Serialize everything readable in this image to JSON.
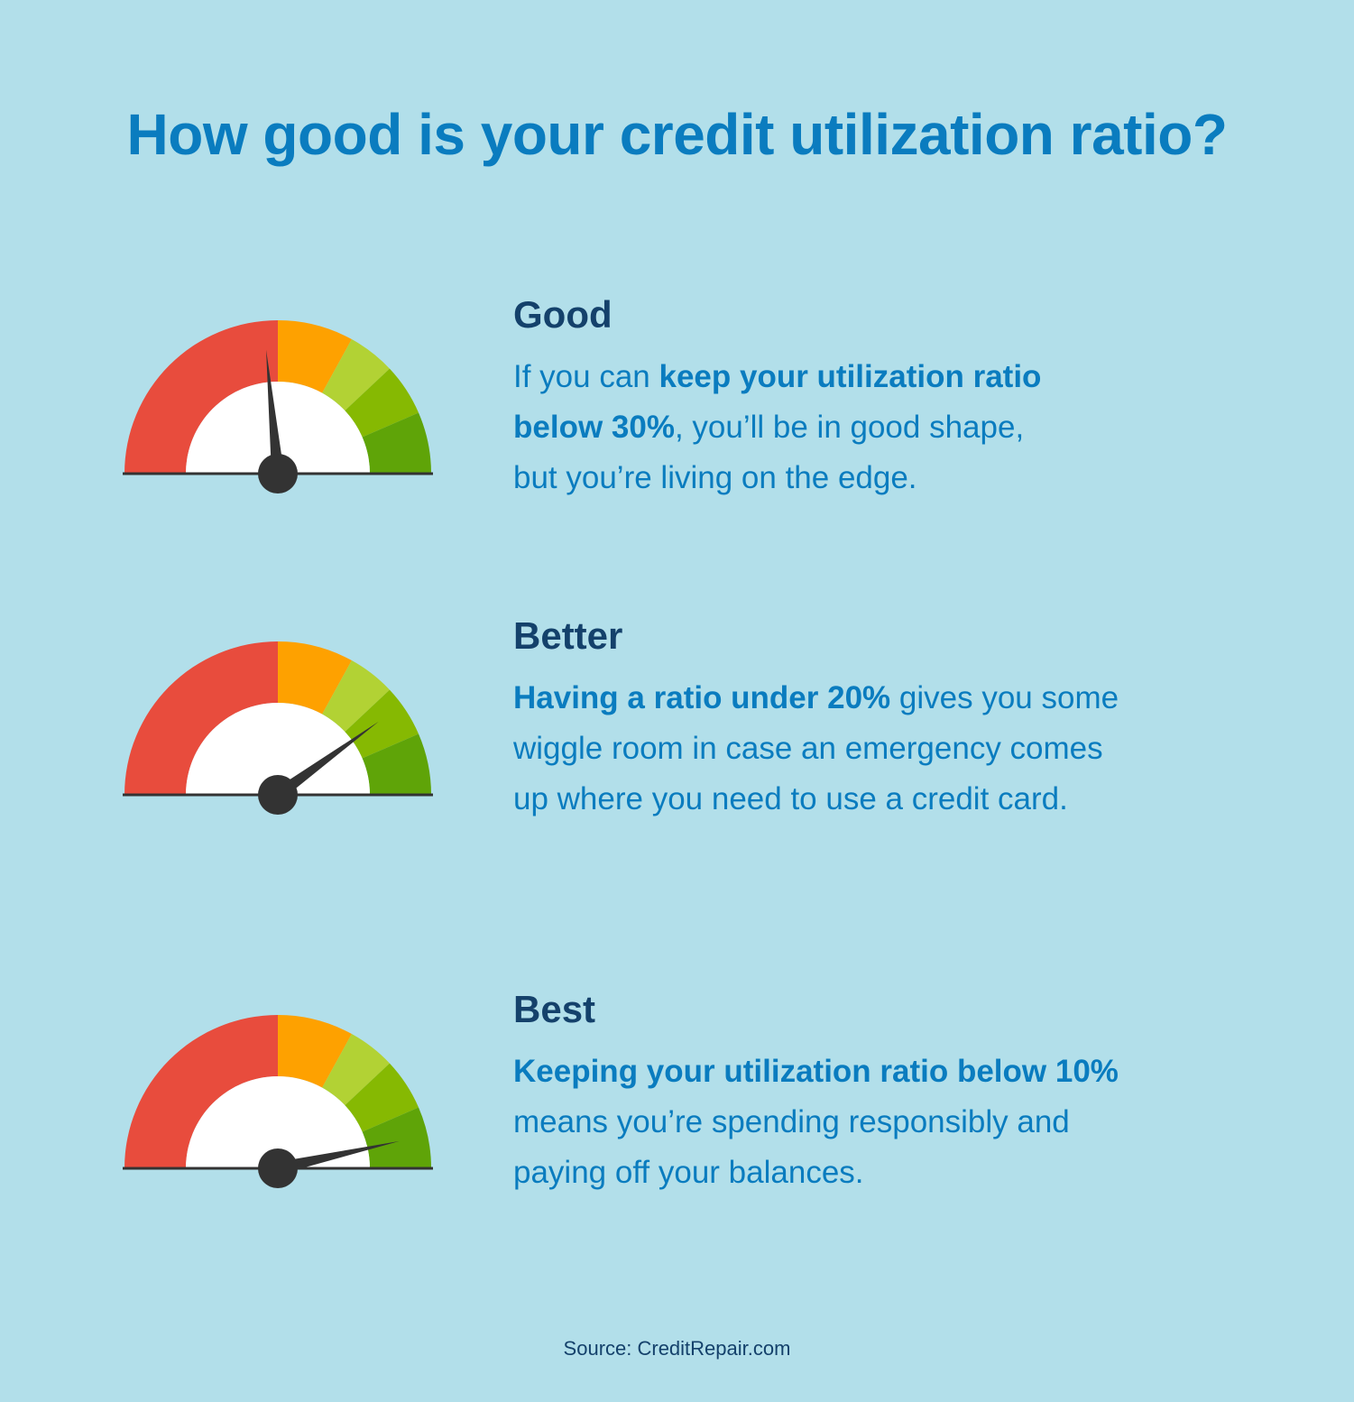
{
  "title": "How good is your credit utilization ratio?",
  "colors": {
    "background": "#b2dfea",
    "title": "#0a7cbf",
    "heading": "#14416b",
    "body": "#0a7cbf",
    "gauge_segments": [
      "#e84c3d",
      "#fea100",
      "#b2d234",
      "#86b902",
      "#5fa408"
    ],
    "needle": "#333333"
  },
  "sections": [
    {
      "heading": "Good",
      "body_lines": [
        {
          "bold": "keep your utilization ratio",
          "pre": "If you can ",
          "post": ""
        },
        {
          "bold": "below 30%",
          "pre": "",
          "post": ", you’ll be in good shape,"
        },
        {
          "bold": "",
          "pre": "but you’re living on the edge.",
          "post": ""
        }
      ],
      "needle_level": 0.47
    },
    {
      "heading": "Better",
      "body_lines": [
        {
          "bold": "Having a ratio under 20%",
          "pre": "",
          "post": " gives you some"
        },
        {
          "bold": "",
          "pre": "wiggle room in case an emergency comes",
          "post": ""
        },
        {
          "bold": "",
          "pre": "up where you need to use a credit card.",
          "post": ""
        }
      ],
      "needle_level": 0.8
    },
    {
      "heading": "Best",
      "body_lines": [
        {
          "bold": "Keeping your utilization ratio below 10%",
          "pre": "",
          "post": ""
        },
        {
          "bold": "",
          "pre": "means you’re spending responsibly and",
          "post": ""
        },
        {
          "bold": "",
          "pre": "paying off your balances.",
          "post": ""
        }
      ],
      "needle_level": 0.93
    }
  ],
  "source": "Source: CreditRepair.com"
}
